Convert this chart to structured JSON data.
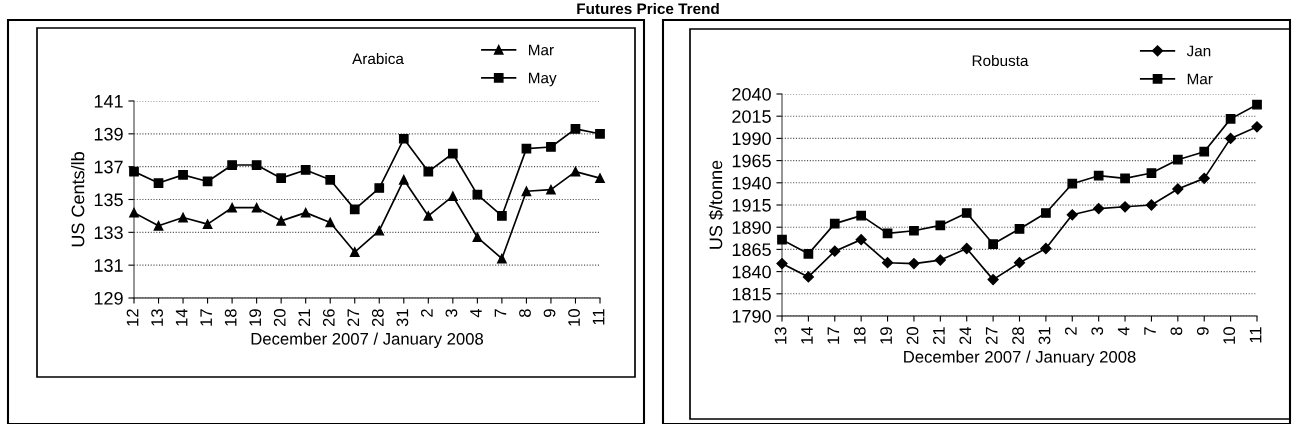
{
  "chart_data": [
    {
      "type": "line",
      "title": "Futures Price Trend",
      "subtitle": "Arabica",
      "xlabel": "December 2007 / January 2008",
      "ylabel": "US Cents/lb",
      "categories": [
        "12",
        "13",
        "14",
        "17",
        "18",
        "19",
        "20",
        "21",
        "26",
        "27",
        "28",
        "31",
        "2",
        "3",
        "4",
        "7",
        "8",
        "9",
        "10",
        "11"
      ],
      "series": [
        {
          "name": "Mar",
          "color": "#000000",
          "marker": "triangle",
          "values": [
            134.2,
            133.4,
            133.9,
            133.5,
            134.5,
            134.5,
            133.7,
            134.2,
            133.6,
            131.8,
            133.1,
            136.2,
            134.0,
            135.2,
            132.7,
            131.4,
            135.5,
            135.6,
            136.7,
            136.3
          ]
        },
        {
          "name": "May",
          "color": "#000000",
          "marker": "square",
          "values": [
            136.7,
            136.0,
            136.5,
            136.1,
            137.1,
            137.1,
            136.3,
            136.8,
            136.2,
            134.4,
            135.7,
            138.7,
            136.7,
            137.8,
            135.3,
            134.0,
            138.1,
            138.2,
            139.3,
            139.0
          ]
        }
      ],
      "ylim": [
        129,
        141
      ],
      "yticks": [
        129,
        131,
        133,
        135,
        137,
        139,
        141
      ],
      "grid": "y",
      "legend": "top right",
      "line_style": "solid"
    },
    {
      "type": "line",
      "subtitle": "Robusta",
      "xlabel": "December 2007 / January 2008",
      "ylabel": "US $/tonne",
      "categories": [
        "13",
        "14",
        "17",
        "18",
        "19",
        "20",
        "21",
        "24",
        "27",
        "28",
        "31",
        "2",
        "3",
        "4",
        "7",
        "8",
        "9",
        "10",
        "11"
      ],
      "series": [
        {
          "name": "Jan",
          "color": "#000000",
          "marker": "diamond",
          "values": [
            1849,
            1834,
            1863,
            1876,
            1850,
            1849,
            1853,
            1866,
            1831,
            1850,
            1866,
            1904,
            1911,
            1913,
            1915,
            1933,
            1945,
            1990,
            2003
          ]
        },
        {
          "name": "Mar",
          "color": "#000000",
          "marker": "square",
          "values": [
            1876,
            1860,
            1894,
            1903,
            1883,
            1886,
            1892,
            1906,
            1871,
            1888,
            1906,
            1939,
            1948,
            1945,
            1951,
            1966,
            1975,
            2012,
            2028
          ]
        }
      ],
      "ylim": [
        1790,
        2040
      ],
      "yticks": [
        1790,
        1815,
        1840,
        1865,
        1890,
        1915,
        1940,
        1965,
        1990,
        2015,
        2040
      ],
      "grid": "y",
      "legend": "top right",
      "line_style": "solid"
    }
  ]
}
